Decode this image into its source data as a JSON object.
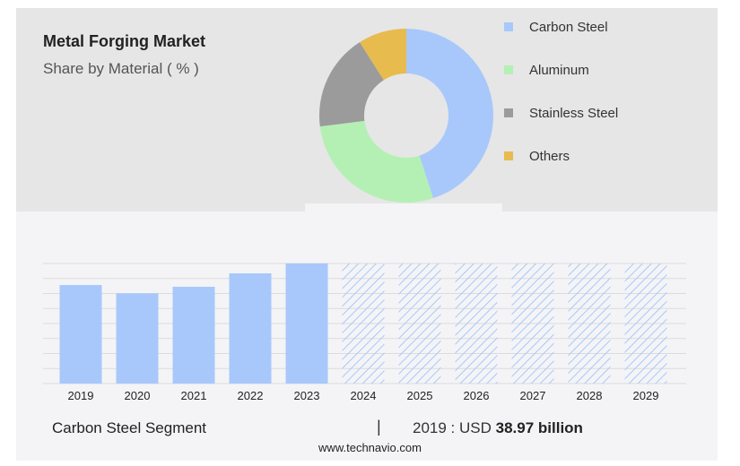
{
  "header": {
    "title": "Metal Forging Market",
    "subtitle": "Share by Material ( % )"
  },
  "colors": {
    "carbon_steel": "#a8c8fb",
    "aluminum": "#b4f0b4",
    "stainless_steel": "#9b9b9b",
    "others": "#e8bb4f",
    "bar_fill": "#a8c8fb",
    "forecast_hatch": "#a8c8fb"
  },
  "chart_data": [
    {
      "type": "pie",
      "variant": "donut",
      "title": "Share by Material ( % )",
      "categories": [
        "Carbon Steel",
        "Aluminum",
        "Stainless Steel",
        "Others"
      ],
      "values": [
        45,
        28,
        18,
        9
      ],
      "legend": "right"
    },
    {
      "type": "bar",
      "title": "Carbon Steel Segment",
      "categories": [
        "2019",
        "2020",
        "2021",
        "2022",
        "2023",
        "2024",
        "2025",
        "2026",
        "2027",
        "2028",
        "2029"
      ],
      "values": [
        38.97,
        35.7,
        38.3,
        43.6,
        47.5,
        null,
        null,
        null,
        null,
        null,
        null
      ],
      "forecast_categories": [
        "2024",
        "2025",
        "2026",
        "2027",
        "2028",
        "2029"
      ],
      "forecast_style": "hatched",
      "ylim": [
        0,
        47.5
      ],
      "grid": true
    }
  ],
  "footer": {
    "segment": "Carbon Steel Segment",
    "separator": "|",
    "value_prefix": "2019 : USD",
    "value_bold": "38.97 billion",
    "website": "www.technavio.com"
  }
}
